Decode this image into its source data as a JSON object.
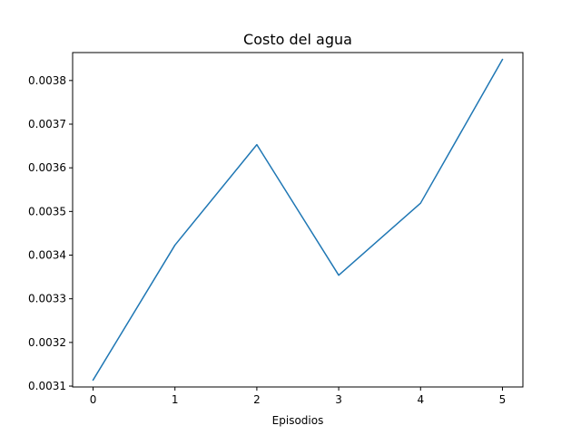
{
  "chart_data": {
    "type": "line",
    "title": "Costo del agua",
    "xlabel": "Episodios",
    "ylabel": "",
    "x": [
      0,
      1,
      2,
      3,
      4,
      5
    ],
    "series": [
      {
        "values": [
          0.003114,
          0.003423,
          0.003653,
          0.003354,
          0.003519,
          0.003848
        ],
        "color": "#1f77b4"
      }
    ],
    "xlim": [
      -0.25,
      5.25
    ],
    "ylim": [
      0.003098,
      0.003864
    ],
    "x_ticks": [
      0,
      1,
      2,
      3,
      4,
      5
    ],
    "x_tick_labels": [
      "0",
      "1",
      "2",
      "3",
      "4",
      "5"
    ],
    "y_ticks": [
      0.0031,
      0.0032,
      0.0033,
      0.0034,
      0.0035,
      0.0036,
      0.0037,
      0.0038
    ],
    "y_tick_labels": [
      "0.0031",
      "0.0032",
      "0.0033",
      "0.0034",
      "0.0035",
      "0.0036",
      "0.0037",
      "0.0038"
    ],
    "grid": false,
    "legend": "none"
  }
}
